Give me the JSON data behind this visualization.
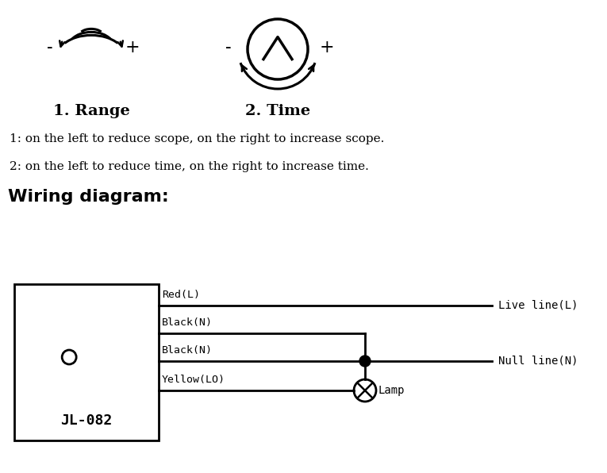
{
  "bg_color": "#ffffff",
  "text_color": "#000000",
  "label1": "1. Range",
  "label2": "2. Time",
  "desc1": "1: on the left to reduce scope, on the right to increase scope.",
  "desc2": "2: on the left to reduce time, on the right to increase time.",
  "wiring_title": "Wiring diagram:",
  "wire_labels": [
    "Red(L)",
    "Black(N)",
    "Black(N)",
    "Yellow(LO)"
  ],
  "right_labels": [
    "Live line(L)",
    "Null line(N)"
  ],
  "lamp_label": "Lamp",
  "box_label": "JL-082",
  "minus_sign": "-",
  "plus_sign": "+"
}
